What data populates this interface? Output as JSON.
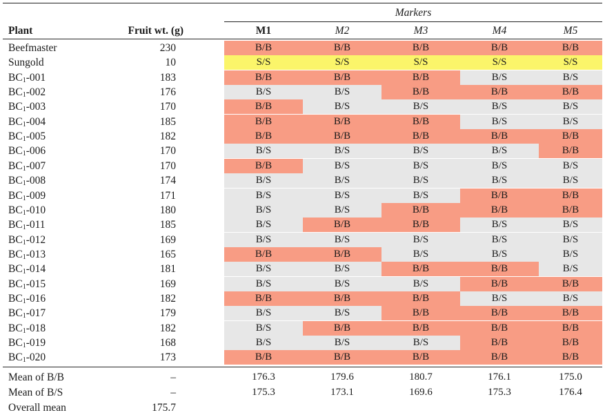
{
  "header": {
    "plant": "Plant",
    "fruit_wt": "Fruit wt. (g)",
    "markers_title": "Markers",
    "markers": [
      "M1",
      "M2",
      "M3",
      "M4",
      "M5"
    ]
  },
  "colors": {
    "BB": "#f89c84",
    "SS": "#fbf56a",
    "BS": "#e7e7e7"
  },
  "rows": [
    {
      "prefix": "Beefmaster",
      "sub": "",
      "suffix": "",
      "wt": "230",
      "g": [
        "B/B",
        "B/B",
        "B/B",
        "B/B",
        "B/B"
      ]
    },
    {
      "prefix": "Sungold",
      "sub": "",
      "suffix": "",
      "wt": "10",
      "g": [
        "S/S",
        "S/S",
        "S/S",
        "S/S",
        "S/S"
      ]
    },
    {
      "prefix": "BC",
      "sub": "1",
      "suffix": "-001",
      "wt": "183",
      "g": [
        "B/B",
        "B/B",
        "B/B",
        "B/S",
        "B/S"
      ]
    },
    {
      "prefix": "BC",
      "sub": "1",
      "suffix": "-002",
      "wt": "176",
      "g": [
        "B/S",
        "B/S",
        "B/B",
        "B/B",
        "B/B"
      ]
    },
    {
      "prefix": "BC",
      "sub": "1",
      "suffix": "-003",
      "wt": "170",
      "g": [
        "B/B",
        "B/S",
        "B/S",
        "B/S",
        "B/S"
      ]
    },
    {
      "prefix": "BC",
      "sub": "1",
      "suffix": "-004",
      "wt": "185",
      "g": [
        "B/B",
        "B/B",
        "B/B",
        "B/S",
        "B/S"
      ]
    },
    {
      "prefix": "BC",
      "sub": "1",
      "suffix": "-005",
      "wt": "182",
      "g": [
        "B/B",
        "B/B",
        "B/B",
        "B/B",
        "B/B"
      ]
    },
    {
      "prefix": "BC",
      "sub": "1",
      "suffix": "-006",
      "wt": "170",
      "g": [
        "B/S",
        "B/S",
        "B/S",
        "B/S",
        "B/B"
      ]
    },
    {
      "prefix": "BC",
      "sub": "1",
      "suffix": "-007",
      "wt": "170",
      "g": [
        "B/B",
        "B/S",
        "B/S",
        "B/S",
        "B/S"
      ]
    },
    {
      "prefix": "BC",
      "sub": "1",
      "suffix": "-008",
      "wt": "174",
      "g": [
        "B/S",
        "B/S",
        "B/S",
        "B/S",
        "B/S"
      ]
    },
    {
      "prefix": "BC",
      "sub": "1",
      "suffix": "-009",
      "wt": "171",
      "g": [
        "B/S",
        "B/S",
        "B/S",
        "B/B",
        "B/B"
      ]
    },
    {
      "prefix": "BC",
      "sub": "1",
      "suffix": "-010",
      "wt": "180",
      "g": [
        "B/S",
        "B/S",
        "B/B",
        "B/B",
        "B/B"
      ]
    },
    {
      "prefix": "BC",
      "sub": "1",
      "suffix": "-011",
      "wt": "185",
      "g": [
        "B/S",
        "B/B",
        "B/B",
        "B/S",
        "B/S"
      ]
    },
    {
      "prefix": "BC",
      "sub": "1",
      "suffix": "-012",
      "wt": "169",
      "g": [
        "B/S",
        "B/S",
        "B/S",
        "B/S",
        "B/S"
      ]
    },
    {
      "prefix": "BC",
      "sub": "1",
      "suffix": "-013",
      "wt": "165",
      "g": [
        "B/B",
        "B/B",
        "B/S",
        "B/S",
        "B/S"
      ]
    },
    {
      "prefix": "BC",
      "sub": "1",
      "suffix": "-014",
      "wt": "181",
      "g": [
        "B/S",
        "B/S",
        "B/B",
        "B/B",
        "B/S"
      ]
    },
    {
      "prefix": "BC",
      "sub": "1",
      "suffix": "-015",
      "wt": "169",
      "g": [
        "B/S",
        "B/S",
        "B/S",
        "B/B",
        "B/B"
      ]
    },
    {
      "prefix": "BC",
      "sub": "1",
      "suffix": "-016",
      "wt": "182",
      "g": [
        "B/B",
        "B/B",
        "B/B",
        "B/S",
        "B/S"
      ]
    },
    {
      "prefix": "BC",
      "sub": "1",
      "suffix": "-017",
      "wt": "179",
      "g": [
        "B/S",
        "B/S",
        "B/B",
        "B/B",
        "B/B"
      ]
    },
    {
      "prefix": "BC",
      "sub": "1",
      "suffix": "-018",
      "wt": "182",
      "g": [
        "B/S",
        "B/B",
        "B/B",
        "B/B",
        "B/B"
      ]
    },
    {
      "prefix": "BC",
      "sub": "1",
      "suffix": "-019",
      "wt": "168",
      "g": [
        "B/S",
        "B/S",
        "B/S",
        "B/B",
        "B/B"
      ]
    },
    {
      "prefix": "BC",
      "sub": "1",
      "suffix": "-020",
      "wt": "173",
      "g": [
        "B/B",
        "B/B",
        "B/B",
        "B/B",
        "B/B"
      ]
    }
  ],
  "summary": [
    {
      "label": "Mean of B/B",
      "wt": "–",
      "vals": [
        "176.3",
        "179.6",
        "180.7",
        "176.1",
        "175.0"
      ]
    },
    {
      "label": "Mean of B/S",
      "wt": "–",
      "vals": [
        "175.3",
        "173.1",
        "169.6",
        "175.3",
        "176.4"
      ]
    },
    {
      "label": "Overall mean",
      "wt": "175.7",
      "vals": [
        "",
        "",
        "",
        "",
        ""
      ]
    }
  ]
}
